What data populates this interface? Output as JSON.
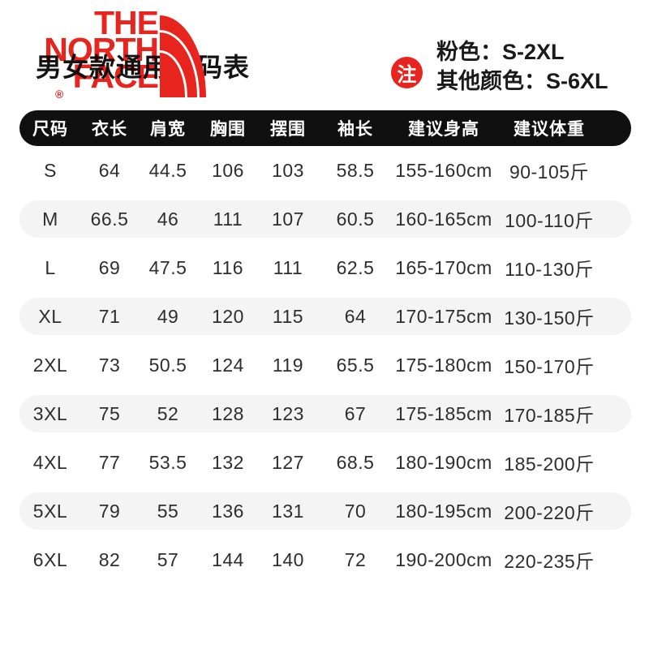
{
  "logo": {
    "line1": "THE",
    "line2": "NORTH",
    "line3": "FACE",
    "registered": "®"
  },
  "title": "男女款通用尺码表",
  "note": {
    "badge": "注",
    "line1": "粉色：S-2XL",
    "line2": "其他颜色：S-6XL"
  },
  "chart_data": {
    "type": "table",
    "title": "男女款通用尺码表",
    "columns": [
      "尺码",
      "衣长",
      "肩宽",
      "胸围",
      "摆围",
      "袖长",
      "建议身高",
      "建议体重"
    ],
    "rows": [
      [
        "S",
        "64",
        "44.5",
        "106",
        "103",
        "58.5",
        "155-160cm",
        "90-105斤"
      ],
      [
        "M",
        "66.5",
        "46",
        "111",
        "107",
        "60.5",
        "160-165cm",
        "100-110斤"
      ],
      [
        "L",
        "69",
        "47.5",
        "116",
        "111",
        "62.5",
        "165-170cm",
        "110-130斤"
      ],
      [
        "XL",
        "71",
        "49",
        "120",
        "115",
        "64",
        "170-175cm",
        "130-150斤"
      ],
      [
        "2XL",
        "73",
        "50.5",
        "124",
        "119",
        "65.5",
        "175-180cm",
        "150-170斤"
      ],
      [
        "3XL",
        "75",
        "52",
        "128",
        "123",
        "67",
        "175-185cm",
        "170-185斤"
      ],
      [
        "4XL",
        "77",
        "53.5",
        "132",
        "127",
        "68.5",
        "180-190cm",
        "185-200斤"
      ],
      [
        "5XL",
        "79",
        "55",
        "136",
        "131",
        "70",
        "180-195cm",
        "200-220斤"
      ],
      [
        "6XL",
        "82",
        "57",
        "144",
        "140",
        "72",
        "190-200cm",
        "220-235斤"
      ]
    ]
  },
  "colors": {
    "brand_red": "#E8241E",
    "header_bg": "#101010",
    "row_alt_bg": "#F4F4F5",
    "text_dark": "#2E2E2E"
  }
}
